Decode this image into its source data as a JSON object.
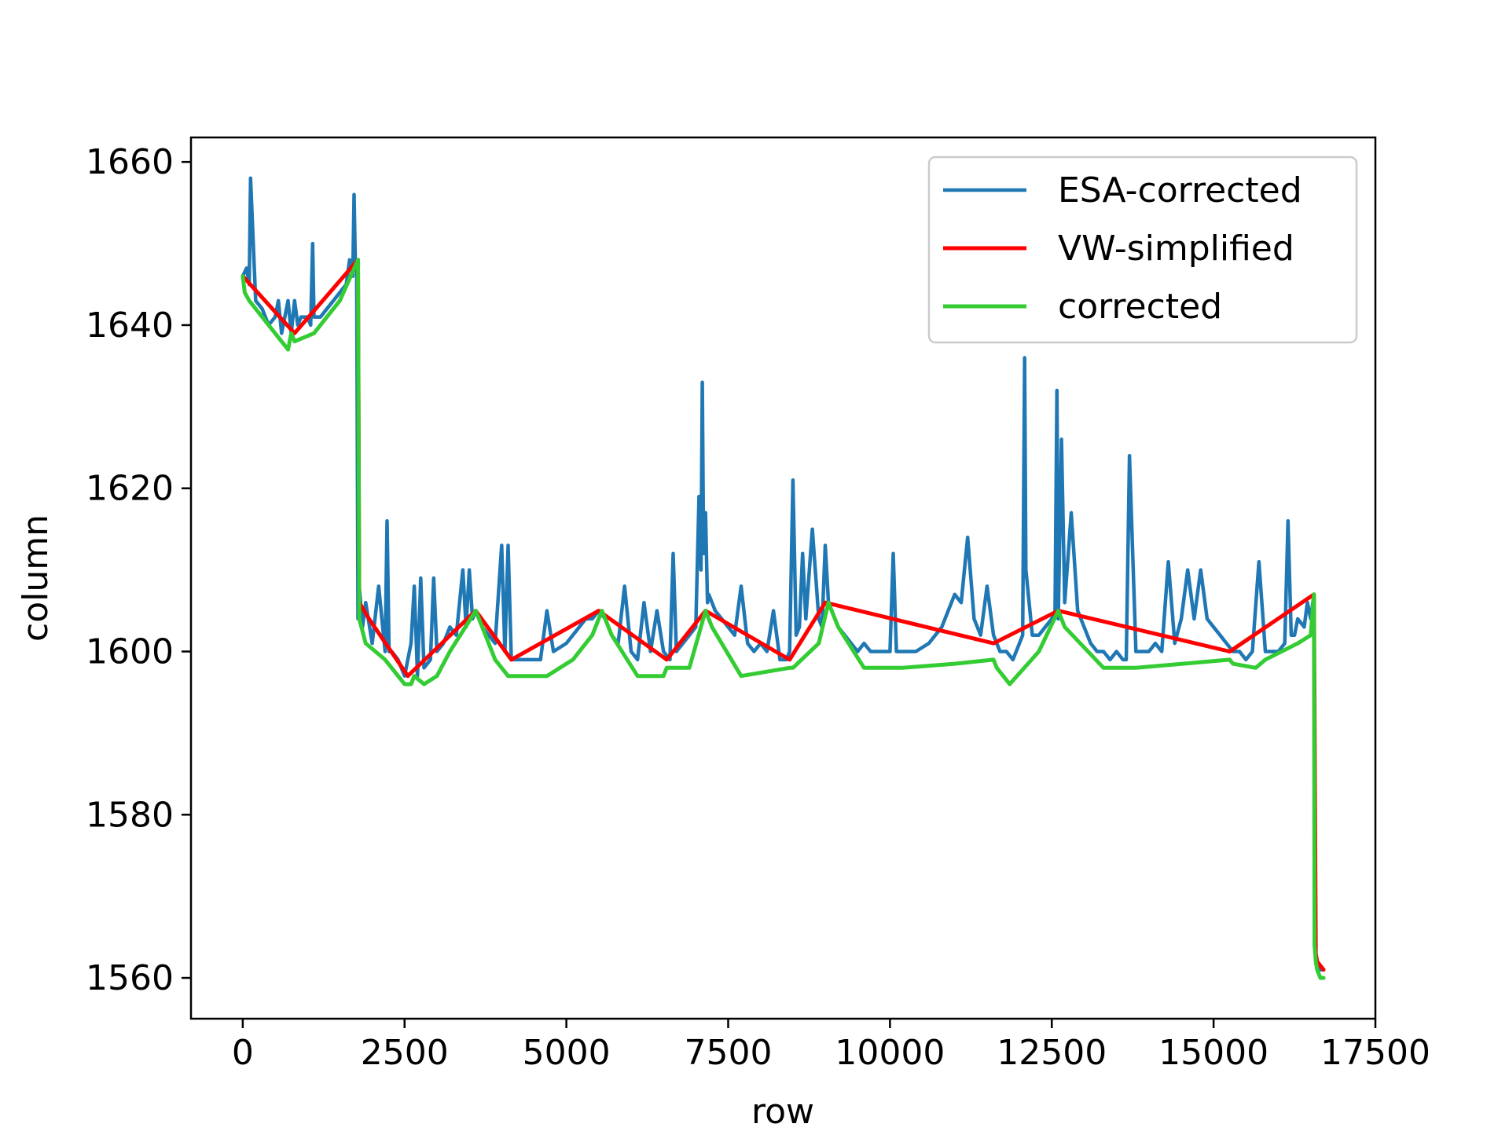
{
  "chart_data": {
    "type": "line",
    "title": "",
    "xlabel": "row",
    "ylabel": "column",
    "xlim": [
      -800,
      17500
    ],
    "ylim": [
      1555,
      1663
    ],
    "xticks": [
      0,
      2500,
      5000,
      7500,
      10000,
      12500,
      15000,
      17500
    ],
    "yticks": [
      1560,
      1580,
      1600,
      1620,
      1640,
      1660
    ],
    "grid": false,
    "legend_position": "top-right",
    "series": [
      {
        "name": "ESA-corrected",
        "color": "#1f77b4",
        "x": [
          0,
          60,
          100,
          120,
          200,
          300,
          400,
          500,
          550,
          600,
          650,
          700,
          750,
          800,
          850,
          900,
          1000,
          1050,
          1080,
          1100,
          1200,
          1300,
          1400,
          1500,
          1600,
          1650,
          1700,
          1720,
          1740,
          1760,
          1780,
          1800,
          1850,
          1900,
          2000,
          2100,
          2200,
          2230,
          2260,
          2300,
          2400,
          2500,
          2600,
          2650,
          2700,
          2750,
          2800,
          2900,
          2950,
          3000,
          3100,
          3200,
          3300,
          3400,
          3450,
          3500,
          3550,
          3600,
          3700,
          3800,
          3900,
          4000,
          4050,
          4100,
          4150,
          4200,
          4300,
          4400,
          4600,
          4700,
          4800,
          5000,
          5200,
          5300,
          5400,
          5500,
          5600,
          5700,
          5800,
          5900,
          6000,
          6100,
          6200,
          6300,
          6400,
          6500,
          6600,
          6650,
          6700,
          6800,
          6900,
          7000,
          7050,
          7080,
          7100,
          7120,
          7150,
          7180,
          7200,
          7250,
          7300,
          7400,
          7500,
          7600,
          7700,
          7800,
          7900,
          8000,
          8100,
          8200,
          8300,
          8400,
          8450,
          8500,
          8550,
          8600,
          8650,
          8700,
          8800,
          8900,
          8950,
          9000,
          9050,
          9100,
          9200,
          9300,
          9400,
          9500,
          9600,
          9700,
          9800,
          9900,
          10000,
          10050,
          10100,
          10200,
          10400,
          10600,
          10800,
          10900,
          11000,
          11100,
          11200,
          11300,
          11400,
          11500,
          11600,
          11700,
          11800,
          11900,
          12000,
          12050,
          12080,
          12100,
          12200,
          12300,
          12400,
          12500,
          12550,
          12580,
          12600,
          12650,
          12700,
          12800,
          12900,
          13000,
          13100,
          13200,
          13300,
          13400,
          13500,
          13600,
          13650,
          13700,
          13800,
          13900,
          14000,
          14100,
          14200,
          14300,
          14400,
          14500,
          14600,
          14700,
          14800,
          14900,
          15000,
          15100,
          15200,
          15300,
          15400,
          15500,
          15600,
          15700,
          15800,
          15900,
          16000,
          16100,
          16150,
          16200,
          16250,
          16300,
          16400,
          16450,
          16500,
          16550,
          16560,
          16580,
          16600,
          16620,
          16650,
          16700
        ],
        "y": [
          1646,
          1647,
          1645,
          1658,
          1643,
          1642,
          1640,
          1641,
          1643,
          1639,
          1641,
          1643,
          1639,
          1643,
          1640,
          1641,
          1641,
          1640,
          1650,
          1641,
          1641,
          1642,
          1643,
          1644,
          1645,
          1648,
          1646,
          1656,
          1647,
          1648,
          1604,
          1608,
          1603,
          1606,
          1601,
          1608,
          1600,
          1616,
          1600,
          1600,
          1599,
          1597,
          1601,
          1608,
          1597,
          1609,
          1598,
          1599,
          1609,
          1600,
          1601,
          1603,
          1602,
          1610,
          1603,
          1610,
          1604,
          1605,
          1603,
          1602,
          1601,
          1613,
          1600,
          1613,
          1599,
          1599,
          1599,
          1599,
          1599,
          1605,
          1600,
          1601,
          1603,
          1604,
          1604,
          1605,
          1604,
          1602,
          1601,
          1608,
          1600,
          1599,
          1606,
          1600,
          1605,
          1600,
          1599,
          1612,
          1600,
          1601,
          1602,
          1603,
          1619,
          1610,
          1633,
          1612,
          1617,
          1606,
          1607,
          1606,
          1605,
          1604,
          1603,
          1602,
          1608,
          1601,
          1600,
          1601,
          1600,
          1605,
          1599,
          1599,
          1600,
          1621,
          1602,
          1603,
          1612,
          1604,
          1615,
          1604,
          1603,
          1613,
          1606,
          1605,
          1603,
          1602,
          1601,
          1600,
          1601,
          1600,
          1600,
          1600,
          1600,
          1612,
          1600,
          1600,
          1600,
          1601,
          1603,
          1605,
          1607,
          1606,
          1614,
          1604,
          1602,
          1608,
          1602,
          1600,
          1600,
          1599,
          1601,
          1602,
          1636,
          1610,
          1602,
          1602,
          1603,
          1604,
          1605,
          1632,
          1604,
          1626,
          1606,
          1617,
          1605,
          1603,
          1601,
          1600,
          1600,
          1599,
          1600,
          1599,
          1599,
          1624,
          1600,
          1600,
          1600,
          1601,
          1600,
          1611,
          1601,
          1604,
          1610,
          1604,
          1610,
          1604,
          1603,
          1602,
          1601,
          1600,
          1600,
          1599,
          1600,
          1611,
          1600,
          1600,
          1600,
          1601,
          1616,
          1602,
          1602,
          1604,
          1603,
          1606,
          1604,
          1607,
          1572,
          1562,
          1562,
          1561,
          1561,
          1561
        ]
      },
      {
        "name": "VW-simplified",
        "color": "#ff0000",
        "x": [
          0,
          800,
          1780,
          1800,
          1950,
          2550,
          3600,
          4150,
          5500,
          6550,
          7150,
          8450,
          9000,
          11600,
          12600,
          15250,
          16550,
          16580,
          16600,
          16700
        ],
        "y": [
          1646,
          1639,
          1648,
          1606,
          1604,
          1597,
          1605,
          1599,
          1605,
          1599,
          1605,
          1599,
          1606,
          1601,
          1605,
          1600,
          1607,
          1563,
          1562,
          1561
        ]
      },
      {
        "name": "corrected",
        "color": "#33cc33",
        "x": [
          0,
          30,
          100,
          400,
          700,
          750,
          800,
          1100,
          1300,
          1500,
          1780,
          1800,
          1900,
          2200,
          2500,
          2600,
          2650,
          2800,
          3000,
          3200,
          3600,
          3700,
          3900,
          4100,
          4200,
          4700,
          5100,
          5400,
          5550,
          5700,
          6100,
          6500,
          6550,
          6900,
          7150,
          7250,
          7700,
          8450,
          8500,
          8900,
          9050,
          9200,
          9600,
          10200,
          11000,
          11600,
          11650,
          11850,
          12300,
          12600,
          12700,
          13300,
          13800,
          15250,
          15300,
          15650,
          15800,
          16300,
          16500,
          16550,
          16560,
          16580,
          16600,
          16650,
          16700
        ],
        "y": [
          1646,
          1644,
          1643,
          1640,
          1637,
          1639,
          1638,
          1639,
          1641,
          1643,
          1648,
          1604,
          1601,
          1599,
          1596,
          1596,
          1597,
          1596,
          1597,
          1600,
          1605,
          1603,
          1599,
          1597,
          1597,
          1597,
          1599,
          1602,
          1605,
          1602,
          1597,
          1597,
          1598,
          1598,
          1605,
          1603,
          1597,
          1598,
          1598,
          1601,
          1606,
          1603,
          1598,
          1598,
          1598.5,
          1599,
          1598,
          1596,
          1600,
          1605,
          1603,
          1598,
          1598,
          1599,
          1598.5,
          1598,
          1599,
          1601,
          1602,
          1607,
          1564,
          1562,
          1561,
          1560,
          1560
        ]
      }
    ]
  }
}
